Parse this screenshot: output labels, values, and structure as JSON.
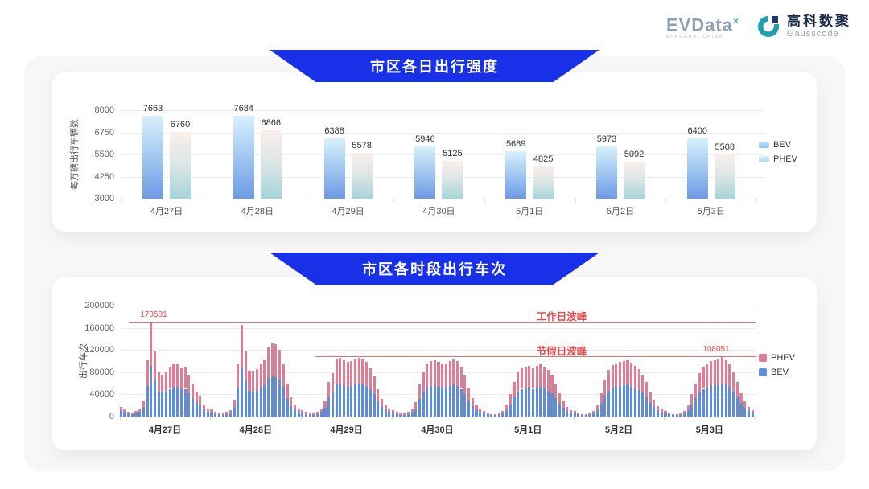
{
  "logo": {
    "evdata_text": "EVData",
    "evdata_sup": "×",
    "evdata_sub": "SHANGHAI CHINA",
    "gausscode_cn": "高科数聚",
    "gausscode_en": "Gausscode"
  },
  "colors": {
    "banner_blue": "#1730e8",
    "bev_gradient_top": "#d7f1fc",
    "bev_gradient_bottom": "#6d9ae4",
    "phev_gradient_top": "#faeeec",
    "phev_gradient_bottom": "#a5d4da",
    "bev_solid": "#5f8cdd",
    "phev_solid": "#de7e95",
    "annotation_red": "#e14b4b"
  },
  "chart_data": [
    {
      "type": "bar",
      "title": "市区各日出行强度",
      "ylabel": "每万辆出行车辆数",
      "ylim": [
        3000,
        8000
      ],
      "yticks": [
        3000,
        4250,
        5500,
        6750,
        8000
      ],
      "grid": true,
      "legend_position": "right",
      "legend": [
        "BEV",
        "PHEV"
      ],
      "categories": [
        "4月27日",
        "4月28日",
        "4月29日",
        "4月30日",
        "5月1日",
        "5月2日",
        "5月3日"
      ],
      "series": [
        {
          "name": "BEV",
          "values": [
            7663,
            7684,
            6388,
            5946,
            5689,
            5973,
            6400
          ]
        },
        {
          "name": "PHEV",
          "values": [
            6760,
            6866,
            5578,
            5125,
            4825,
            5092,
            5508
          ]
        }
      ]
    },
    {
      "type": "bar",
      "subtype": "stacked-hourly",
      "title": "市区各时段出行车次",
      "ylabel": "出行车次",
      "ylim": [
        0,
        200000
      ],
      "yticks": [
        0,
        40000,
        80000,
        120000,
        160000,
        200000
      ],
      "grid": true,
      "legend_position": "right",
      "legend": [
        "PHEV",
        "BEV"
      ],
      "categories": [
        "4月27日",
        "4月28日",
        "4月29日",
        "4月30日",
        "5月1日",
        "5月2日",
        "5月3日"
      ],
      "bars_per_category": 24,
      "annotations": [
        {
          "label": "工作日波峰",
          "value_label": "170581",
          "value": 170581
        },
        {
          "label": "节假日波峰",
          "value_label": "108051",
          "value": 108051
        }
      ],
      "series": [
        {
          "name": "BEV",
          "color": "#5f8cdd",
          "values_by_day": [
            [
              11000,
              8000,
              5000,
              4500,
              6000,
              8000,
              16000,
              55000,
              90581,
              65000,
              45000,
              43000,
              45000,
              50000,
              53000,
              54000,
              49000,
              50000,
              42000,
              33000,
              26000,
              21000,
              13000,
              8500
            ],
            [
              7200,
              5000,
              3900,
              3300,
              4400,
              6600,
              17000,
              52000,
              88000,
              64000,
              46000,
              45000,
              47000,
              53000,
              57000,
              69000,
              73000,
              71000,
              66000,
              53000,
              33000,
              19000,
              11000,
              7200
            ],
            [
              7000,
              4800,
              3600,
              3600,
              4800,
              8400,
              16000,
              35000,
              44000,
              58000,
              59000,
              57000,
              54000,
              55000,
              58000,
              59000,
              58000,
              54000,
              49000,
              40000,
              28000,
              18000,
              11000,
              8000
            ],
            [
              6500,
              4800,
              3600,
              3600,
              4800,
              7800,
              15000,
              32000,
              45000,
              53000,
              55000,
              56000,
              54000,
              52000,
              53000,
              55000,
              58000,
              55000,
              50000,
              41000,
              29000,
              19000,
              12000,
              8000
            ],
            [
              6000,
              4200,
              3000,
              3000,
              3600,
              6000,
              12000,
              22000,
              35000,
              45000,
              50000,
              51000,
              52000,
              50000,
              52000,
              54000,
              51000,
              47000,
              42000,
              34000,
              24000,
              16000,
              10000,
              7000
            ],
            [
              6000,
              4200,
              3000,
              3000,
              3600,
              6000,
              12000,
              23000,
              37000,
              47000,
              52000,
              54000,
              55000,
              56000,
              58000,
              54000,
              52000,
              48000,
              43000,
              35000,
              25000,
              17000,
              11000,
              7500
            ],
            [
              6000,
              4200,
              3000,
              3000,
              3600,
              6000,
              12000,
              22000,
              34000,
              44000,
              50000,
              54000,
              56000,
              57000,
              58000,
              60051,
              58000,
              53000,
              45000,
              35000,
              24000,
              16000,
              10000,
              6500
            ]
          ]
        },
        {
          "name": "PHEV",
          "color": "#de7e95",
          "values_by_day": [
            [
              7000,
              5000,
              3000,
              2500,
              4000,
              5000,
              11000,
              46000,
              80000,
              54000,
              35000,
              33000,
              35000,
              40000,
              42000,
              42000,
              39000,
              40000,
              33000,
              25000,
              19000,
              16000,
              9000,
              5500
            ],
            [
              5800,
              4000,
              3100,
              2700,
              3600,
              5400,
              13000,
              43000,
              76500,
              53000,
              37000,
              37000,
              39000,
              43000,
              46000,
              56000,
              60000,
              59000,
              54000,
              43000,
              27000,
              16000,
              9000,
              5800
            ],
            [
              5000,
              3200,
              2400,
              2400,
              3200,
              5600,
              12000,
              27000,
              34000,
              47000,
              47000,
              46000,
              44000,
              45000,
              46000,
              47000,
              46000,
              44000,
              39000,
              32000,
              22000,
              14000,
              9000,
              6000
            ],
            [
              4500,
              3200,
              2400,
              2400,
              3200,
              5200,
              11000,
              26000,
              35000,
              43000,
              45000,
              46000,
              44000,
              43000,
              43000,
              45000,
              46000,
              45000,
              40000,
              34000,
              23000,
              15000,
              9000,
              6000
            ],
            [
              4000,
              2800,
              2000,
              2000,
              2400,
              4000,
              8000,
              18000,
              27000,
              35000,
              38000,
              39000,
              39000,
              39000,
              40000,
              41000,
              39000,
              37000,
              33000,
              26000,
              18000,
              12000,
              8000,
              5000
            ],
            [
              4000,
              2800,
              2000,
              2000,
              2400,
              4000,
              8000,
              19000,
              29000,
              37000,
              41000,
              42000,
              43000,
              44000,
              45000,
              43000,
              40000,
              38000,
              33000,
              27000,
              19000,
              13000,
              8000,
              5500
            ],
            [
              4000,
              2800,
              2000,
              2000,
              2400,
              4000,
              8000,
              18000,
              26000,
              34000,
              40000,
              42000,
              44000,
              45000,
              46000,
              48000,
              45000,
              41000,
              35000,
              27000,
              18000,
              12000,
              7000,
              4500
            ]
          ]
        }
      ]
    }
  ]
}
